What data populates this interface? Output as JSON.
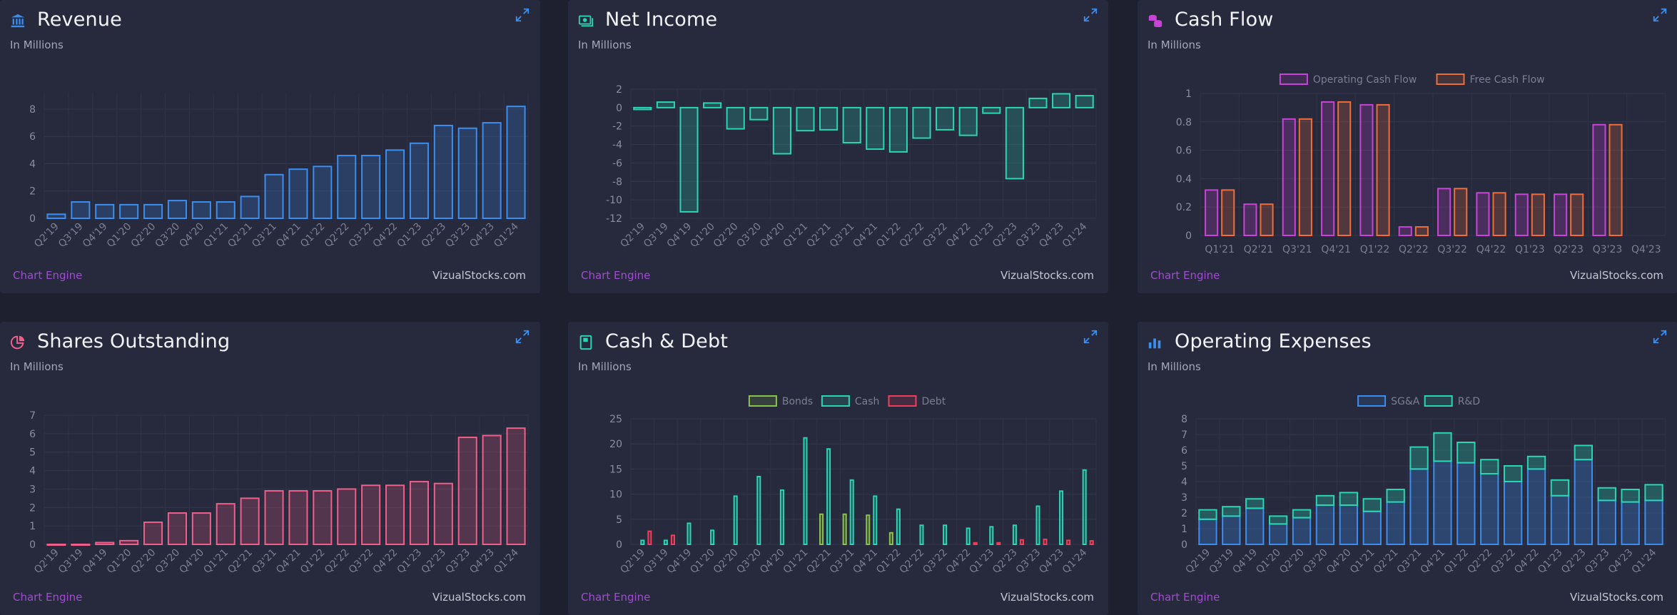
{
  "footer": {
    "engine_label": "Chart Engine",
    "source_label": "VizualStocks.com"
  },
  "colors": {
    "blue": "#3b8ef0",
    "teal": "#29d6b4",
    "magenta": "#c843d6",
    "orange": "#ef6c3c",
    "pink": "#f05f8a",
    "green": "#8bc34a",
    "red": "#ef3f5a",
    "engine": "#a04ccf"
  },
  "cards": [
    {
      "title": "Revenue",
      "subtitle": "In Millions",
      "icon": "bank-icon"
    },
    {
      "title": "Net Income",
      "subtitle": "In Millions",
      "icon": "money-icon"
    },
    {
      "title": "Cash Flow",
      "subtitle": "In Millions",
      "icon": "coins-icon"
    },
    {
      "title": "Shares Outstanding",
      "subtitle": "In Millions",
      "icon": "pie-icon"
    },
    {
      "title": "Cash & Debt",
      "subtitle": "In Millions",
      "icon": "book-icon"
    },
    {
      "title": "Operating Expenses",
      "subtitle": "In Millions",
      "icon": "bar-chart-icon"
    }
  ],
  "chart_data": [
    {
      "type": "bar",
      "title": "Revenue",
      "categories": [
        "Q2'19",
        "Q3'19",
        "Q4'19",
        "Q1'20",
        "Q2'20",
        "Q3'20",
        "Q4'20",
        "Q1'21",
        "Q2'21",
        "Q3'21",
        "Q4'21",
        "Q1'22",
        "Q2'22",
        "Q3'22",
        "Q4'22",
        "Q1'23",
        "Q2'23",
        "Q3'23",
        "Q4'23",
        "Q1'24"
      ],
      "series": [
        {
          "values": [
            0.3,
            1.2,
            1.0,
            1.0,
            1.0,
            1.3,
            1.2,
            1.2,
            1.6,
            3.2,
            3.6,
            3.8,
            4.6,
            4.6,
            5.0,
            5.5,
            6.8,
            6.6,
            7.0,
            8.2
          ],
          "color": "#3b8ef0"
        }
      ],
      "yticks": [
        0,
        2,
        4,
        6,
        8
      ],
      "ylim": [
        0,
        9.2
      ],
      "stacked": false
    },
    {
      "type": "bar",
      "title": "Net Income",
      "categories": [
        "Q2'19",
        "Q3'19",
        "Q4'19",
        "Q1'20",
        "Q2'20",
        "Q3'20",
        "Q4'20",
        "Q1'21",
        "Q2'21",
        "Q3'21",
        "Q4'21",
        "Q1'22",
        "Q2'22",
        "Q3'22",
        "Q4'22",
        "Q1'23",
        "Q2'23",
        "Q3'23",
        "Q4'23",
        "Q1'24"
      ],
      "series": [
        {
          "values": [
            -0.2,
            0.6,
            -11.3,
            0.5,
            -2.3,
            -1.3,
            -5.0,
            -2.5,
            -2.4,
            -3.8,
            -4.5,
            -4.8,
            -3.3,
            -2.4,
            -3.0,
            -0.6,
            -7.7,
            1.0,
            1.5,
            1.3
          ],
          "color": "#29d6b4"
        }
      ],
      "yticks": [
        2,
        0,
        -2,
        -4,
        -6,
        -8,
        -10,
        -12
      ],
      "ylim": [
        -12,
        2
      ],
      "stacked": false
    },
    {
      "type": "bar",
      "title": "Cash Flow",
      "categories": [
        "Q1'21",
        "Q2'21",
        "Q3'21",
        "Q4'21",
        "Q1'22",
        "Q2'22",
        "Q3'22",
        "Q4'22",
        "Q1'23",
        "Q2'23",
        "Q3'23",
        "Q4'23"
      ],
      "series": [
        {
          "name": "Operating Cash Flow",
          "values": [
            0.32,
            0.22,
            0.82,
            0.94,
            0.92,
            0.06,
            0.33,
            0.3,
            0.29,
            0.29,
            0.78,
            0
          ],
          "color": "#c843d6"
        },
        {
          "name": "Free Cash Flow",
          "values": [
            0.32,
            0.22,
            0.82,
            0.94,
            0.92,
            0.06,
            0.33,
            0.3,
            0.29,
            0.29,
            0.78,
            0
          ],
          "color": "#ef6c3c"
        }
      ],
      "yticks": [
        0,
        0.2,
        0.4,
        0.6,
        0.8,
        1.0
      ],
      "ylim": [
        0,
        1.0
      ],
      "stacked": false,
      "xlabel_every": 1
    },
    {
      "type": "bar",
      "title": "Shares Outstanding",
      "categories": [
        "Q2'19",
        "Q3'19",
        "Q4'19",
        "Q1'20",
        "Q2'20",
        "Q3'20",
        "Q4'20",
        "Q1'21",
        "Q2'21",
        "Q3'21",
        "Q4'21",
        "Q1'22",
        "Q2'22",
        "Q3'22",
        "Q4'22",
        "Q1'23",
        "Q2'23",
        "Q3'23",
        "Q4'23",
        "Q1'24"
      ],
      "series": [
        {
          "values": [
            0,
            0,
            0.1,
            0.2,
            1.2,
            1.7,
            1.7,
            2.2,
            2.5,
            2.9,
            2.9,
            2.9,
            3.0,
            3.2,
            3.2,
            3.4,
            3.3,
            5.8,
            5.9,
            6.3
          ],
          "color": "#f05f8a"
        }
      ],
      "yticks": [
        0,
        1,
        2,
        3,
        4,
        5,
        6,
        7
      ],
      "ylim": [
        0,
        7
      ],
      "stacked": false
    },
    {
      "type": "bar",
      "title": "Cash & Debt",
      "categories": [
        "Q2'19",
        "Q3'19",
        "Q4'19",
        "Q1'20",
        "Q2'20",
        "Q3'20",
        "Q4'20",
        "Q1'21",
        "Q2'21",
        "Q3'21",
        "Q4'21",
        "Q1'22",
        "Q2'22",
        "Q3'22",
        "Q4'22",
        "Q1'23",
        "Q2'23",
        "Q3'23",
        "Q4'23",
        "Q1'24"
      ],
      "series": [
        {
          "name": "Bonds",
          "values": [
            0,
            0,
            0,
            0,
            0,
            0,
            0,
            0,
            6.0,
            6.0,
            5.8,
            2.3,
            0,
            0,
            0,
            0,
            0,
            0,
            0,
            0
          ],
          "color": "#8bc34a"
        },
        {
          "name": "Cash",
          "values": [
            0.8,
            0.8,
            4.2,
            2.8,
            9.6,
            13.5,
            10.8,
            21.2,
            19.0,
            12.8,
            9.6,
            7.0,
            3.8,
            3.8,
            3.2,
            3.5,
            3.8,
            7.6,
            10.6,
            14.8
          ],
          "color": "#29d6b4"
        },
        {
          "name": "Debt",
          "values": [
            2.6,
            1.8,
            0,
            0,
            0,
            0,
            0,
            0,
            0,
            0,
            0,
            0,
            0,
            0,
            0.3,
            0.3,
            0.9,
            1.0,
            0.8,
            0.7
          ],
          "color": "#ef3f5a"
        }
      ],
      "yticks": [
        0,
        5,
        10,
        15,
        20,
        25
      ],
      "ylim": [
        0,
        25
      ],
      "stacked": false
    },
    {
      "type": "bar",
      "title": "Operating Expenses",
      "categories": [
        "Q2'19",
        "Q3'19",
        "Q4'19",
        "Q1'20",
        "Q2'20",
        "Q3'20",
        "Q4'20",
        "Q1'21",
        "Q2'21",
        "Q3'21",
        "Q4'21",
        "Q1'22",
        "Q2'22",
        "Q3'22",
        "Q4'22",
        "Q1'23",
        "Q2'23",
        "Q3'23",
        "Q4'23",
        "Q1'24"
      ],
      "series": [
        {
          "name": "SG&A",
          "values": [
            1.6,
            1.8,
            2.3,
            1.3,
            1.7,
            2.5,
            2.5,
            2.1,
            2.7,
            4.8,
            5.3,
            5.2,
            4.5,
            4.0,
            4.8,
            3.1,
            5.4,
            2.8,
            2.7,
            2.8
          ],
          "color": "#3b8ef0"
        },
        {
          "name": "R&D",
          "values": [
            0.6,
            0.6,
            0.6,
            0.5,
            0.5,
            0.6,
            0.8,
            0.8,
            0.8,
            1.4,
            1.8,
            1.3,
            0.9,
            1.0,
            0.8,
            1.0,
            0.9,
            0.8,
            0.8,
            1.0
          ],
          "color": "#29d6b4"
        }
      ],
      "yticks": [
        0,
        1,
        2,
        3,
        4,
        5,
        6,
        7,
        8
      ],
      "ylim": [
        0,
        8
      ],
      "stacked": true
    }
  ]
}
